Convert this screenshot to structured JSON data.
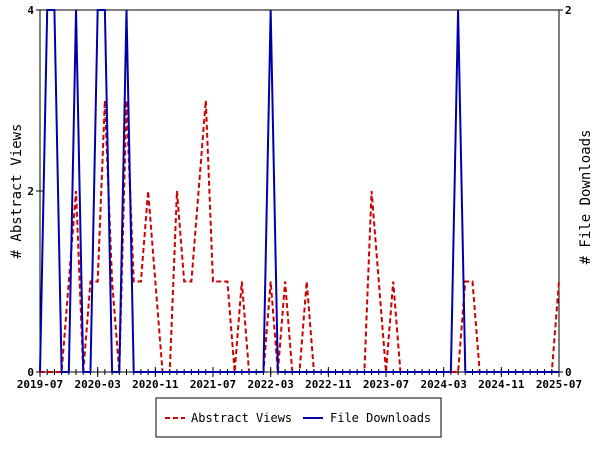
{
  "chart_data": {
    "type": "line",
    "x": [
      "2019-07",
      "2019-08",
      "2019-09",
      "2019-10",
      "2019-11",
      "2019-12",
      "2020-01",
      "2020-02",
      "2020-03",
      "2020-04",
      "2020-05",
      "2020-06",
      "2020-07",
      "2020-08",
      "2020-09",
      "2020-10",
      "2020-11",
      "2020-12",
      "2021-01",
      "2021-02",
      "2021-03",
      "2021-04",
      "2021-05",
      "2021-06",
      "2021-07",
      "2021-08",
      "2021-09",
      "2021-10",
      "2021-11",
      "2021-12",
      "2022-01",
      "2022-02",
      "2022-03",
      "2022-04",
      "2022-05",
      "2022-06",
      "2022-07",
      "2022-08",
      "2022-09",
      "2022-10",
      "2022-11",
      "2022-12",
      "2023-01",
      "2023-02",
      "2023-03",
      "2023-04",
      "2023-05",
      "2023-06",
      "2023-07",
      "2023-08",
      "2023-09",
      "2023-10",
      "2023-11",
      "2023-12",
      "2024-01",
      "2024-02",
      "2024-03",
      "2024-04",
      "2024-05",
      "2024-06",
      "2024-07",
      "2024-08",
      "2024-09",
      "2024-10",
      "2024-11",
      "2024-12",
      "2025-01",
      "2025-02",
      "2025-03",
      "2025-04",
      "2025-05",
      "2025-06",
      "2025-07"
    ],
    "x_tick_labels": [
      "2019-07",
      "2020-03",
      "2020-11",
      "2021-07",
      "2022-03",
      "2022-11",
      "2023-07",
      "2024-03",
      "2024-11",
      "2025-07"
    ],
    "ylabel_left": "# Abstract Views",
    "ylabel_right": "# File Downloads",
    "ylim_left": [
      0,
      4
    ],
    "ylim_right": [
      0,
      2
    ],
    "y_ticks_left": [
      "0",
      "2",
      "4"
    ],
    "y_ticks_right": [
      "0",
      "2"
    ],
    "grid": false,
    "legend_position": "bottom",
    "series": [
      {
        "name": "Abstract Views",
        "axis": "left",
        "color": "#cc0000",
        "style": "dashed",
        "values": [
          0,
          0,
          0,
          0,
          1,
          2,
          0,
          1,
          1,
          3,
          1,
          0,
          3,
          1,
          1,
          2,
          1,
          0,
          0,
          2,
          1,
          1,
          2,
          3,
          1,
          1,
          1,
          0,
          1,
          0,
          0,
          0,
          1,
          0,
          1,
          0,
          0,
          1,
          0,
          0,
          0,
          0,
          0,
          0,
          0,
          0,
          2,
          1,
          0,
          1,
          0,
          0,
          0,
          0,
          0,
          0,
          0,
          0,
          0,
          1,
          1,
          0,
          0,
          0,
          0,
          0,
          0,
          0,
          0,
          0,
          0,
          0,
          1
        ]
      },
      {
        "name": "File Downloads",
        "axis": "right",
        "color": "#0000aa",
        "style": "solid",
        "values": [
          0,
          2,
          2,
          0,
          0,
          2,
          0,
          0,
          2,
          2,
          0,
          0,
          2,
          0,
          0,
          0,
          0,
          0,
          0,
          0,
          0,
          0,
          0,
          0,
          0,
          0,
          0,
          0,
          0,
          0,
          0,
          0,
          2,
          0,
          0,
          0,
          0,
          0,
          0,
          0,
          0,
          0,
          0,
          0,
          0,
          0,
          0,
          0,
          0,
          0,
          0,
          0,
          0,
          0,
          0,
          0,
          0,
          0,
          2,
          0,
          0,
          0,
          0,
          0,
          0,
          0,
          0,
          0,
          0,
          0,
          0,
          0,
          0
        ]
      }
    ]
  }
}
